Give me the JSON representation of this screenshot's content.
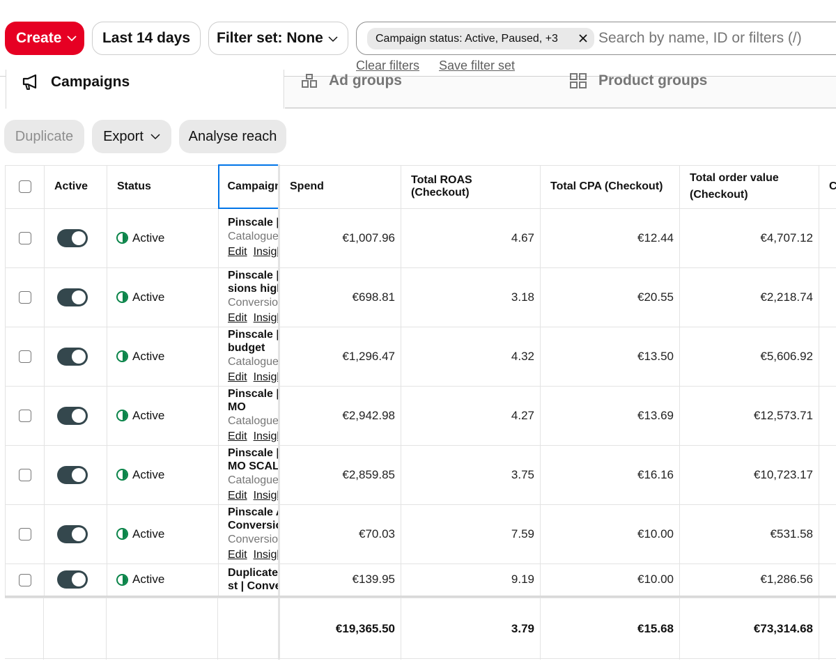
{
  "toolbar": {
    "create_label": "Create",
    "date_range_label": "Last 14 days",
    "filter_set_label": "Filter set: None",
    "filter_chip_label": "Campaign status: Active, Paused, +3",
    "search_placeholder": "Search by name, ID or filters (/)",
    "clear_filters_label": "Clear filters",
    "save_filter_set_label": "Save filter set",
    "brand_color": "#e60023"
  },
  "tabs": [
    {
      "label": "Campaigns",
      "icon": "megaphone-icon",
      "active": true
    },
    {
      "label": "Ad groups",
      "icon": "ad-groups-icon",
      "active": false
    },
    {
      "label": "Product groups",
      "icon": "product-groups-icon",
      "active": false
    }
  ],
  "actions": {
    "duplicate_label": "Duplicate",
    "export_label": "Export",
    "analyse_reach_label": "Analyse reach"
  },
  "table": {
    "headers": {
      "active": "Active",
      "status": "Status",
      "campaign": "Campaign name",
      "spend": "Spend",
      "roas": "Total ROAS (Checkout)",
      "cpa": "Total CPA (Checkout)",
      "tov_line1": "Total order value",
      "tov_line2": "(Checkout)",
      "extra": "C"
    },
    "rows": [
      {
        "status": "Active",
        "name_line1": "Pinscale |",
        "name_line2": "",
        "type": "Catalogue",
        "edit": "Edit",
        "insights": "Insights",
        "spend": "€1,007.96",
        "roas": "4.67",
        "cpa": "€12.44",
        "tov": "€4,707.12"
      },
      {
        "status": "Active",
        "name_line1": "Pinscale |",
        "name_line2": "sions high",
        "type": "Conversions",
        "edit": "Edit",
        "insights": "Insights",
        "spend": "€698.81",
        "roas": "3.18",
        "cpa": "€20.55",
        "tov": "€2,218.74"
      },
      {
        "status": "Active",
        "name_line1": "Pinscale |",
        "name_line2": "budget",
        "type": "Catalogue",
        "edit": "Edit",
        "insights": "Insights",
        "spend": "€1,296.47",
        "roas": "4.32",
        "cpa": "€13.50",
        "tov": "€5,606.92"
      },
      {
        "status": "Active",
        "name_line1": "Pinscale |",
        "name_line2": "MO",
        "type": "Catalogue",
        "edit": "Edit",
        "insights": "Insights",
        "spend": "€2,942.98",
        "roas": "4.27",
        "cpa": "€13.69",
        "tov": "€12,573.71"
      },
      {
        "status": "Active",
        "name_line1": "Pinscale |",
        "name_line2": "MO SCAL",
        "type": "Catalogue",
        "edit": "Edit",
        "insights": "Insights",
        "spend": "€2,859.85",
        "roas": "3.75",
        "cpa": "€16.16",
        "tov": "€10,723.17"
      },
      {
        "status": "Active",
        "name_line1": "Pinscale A",
        "name_line2": "Conversio",
        "type": "Conversions",
        "edit": "Edit",
        "insights": "Insights",
        "spend": "€70.03",
        "roas": "7.59",
        "cpa": "€10.00",
        "tov": "€531.58"
      }
    ],
    "partial_row": {
      "status": "Active",
      "name_line1": "Duplicate",
      "name_line2": "st | Conve",
      "spend": "€139.95",
      "roas": "9.19",
      "cpa": "€10.00",
      "tov": "€1,286.56"
    },
    "totals": {
      "spend": "€19,365.50",
      "roas": "3.79",
      "cpa": "€15.68",
      "tov": "€73,314.68"
    }
  },
  "colors": {
    "toggle_on": "#34474d",
    "status_active": "#0a8449",
    "focus_outline": "#0074e8"
  }
}
